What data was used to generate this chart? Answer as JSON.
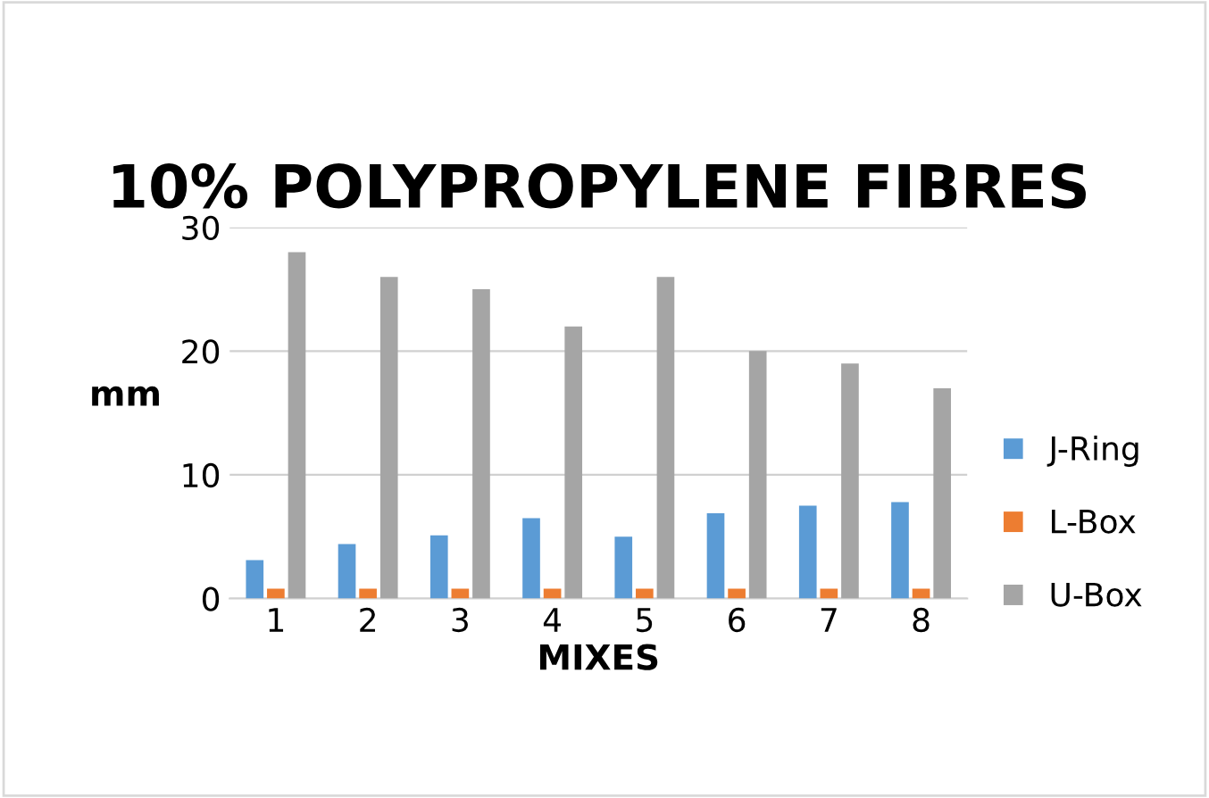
{
  "chart_data": {
    "type": "bar",
    "title": "10% POLYPROPYLENE FIBRES",
    "xlabel": "MIXES",
    "ylabel": "mm",
    "categories": [
      "1",
      "2",
      "3",
      "4",
      "5",
      "6",
      "7",
      "8"
    ],
    "series": [
      {
        "name": "J-Ring",
        "color": "#5b9bd5",
        "values": [
          3.1,
          4.4,
          5.1,
          6.5,
          5.0,
          6.9,
          7.5,
          7.8
        ]
      },
      {
        "name": "L-Box",
        "color": "#ed7d31",
        "values": [
          0.8,
          0.8,
          0.8,
          0.8,
          0.8,
          0.8,
          0.8,
          0.8
        ]
      },
      {
        "name": "U-Box",
        "color": "#a5a5a5",
        "values": [
          28,
          26,
          25,
          22,
          26,
          20,
          19,
          17
        ]
      }
    ],
    "ylim": [
      0,
      30
    ],
    "yticks": [
      0,
      10,
      20,
      30
    ],
    "grid": "y",
    "legend": "right"
  }
}
